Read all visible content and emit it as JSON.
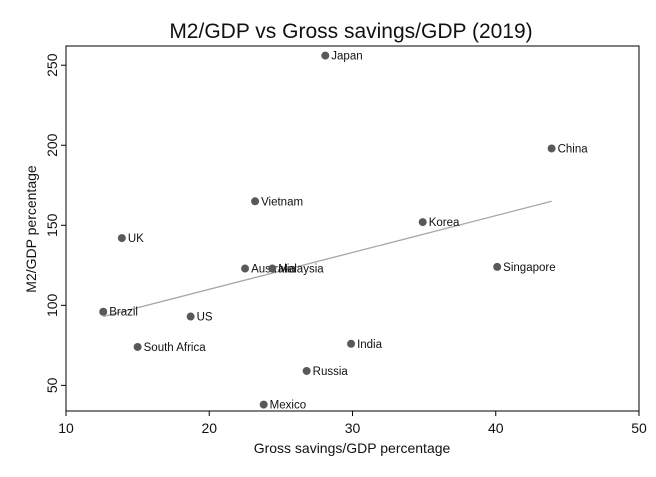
{
  "chart_data": {
    "type": "scatter",
    "title": "M2/GDP vs Gross savings/GDP (2019)",
    "xlabel": "Gross savings/GDP percentage",
    "ylabel": "M2/GDP percentage",
    "xlim": [
      10,
      50
    ],
    "ylim": [
      34,
      262
    ],
    "xticks": [
      10,
      20,
      30,
      40,
      50
    ],
    "yticks": [
      50,
      100,
      150,
      200,
      250
    ],
    "grid": false,
    "legend": "none",
    "marker_color": "#595959",
    "fit_line_color": "#a6a6a6",
    "points": [
      {
        "label": "Japan",
        "x": 28.1,
        "y": 256
      },
      {
        "label": "China",
        "x": 43.9,
        "y": 198
      },
      {
        "label": "Vietnam",
        "x": 23.2,
        "y": 165
      },
      {
        "label": "Korea",
        "x": 34.9,
        "y": 152
      },
      {
        "label": "UK",
        "x": 13.9,
        "y": 142
      },
      {
        "label": "Singapore",
        "x": 40.1,
        "y": 124
      },
      {
        "label": "Australia",
        "x": 22.5,
        "y": 123
      },
      {
        "label": "Malaysia",
        "x": 24.4,
        "y": 123
      },
      {
        "label": "Brazil",
        "x": 12.6,
        "y": 96
      },
      {
        "label": "US",
        "x": 18.7,
        "y": 93
      },
      {
        "label": "South Africa",
        "x": 15.0,
        "y": 74
      },
      {
        "label": "India",
        "x": 29.9,
        "y": 76
      },
      {
        "label": "Russia",
        "x": 26.8,
        "y": 59
      },
      {
        "label": "Mexico",
        "x": 23.8,
        "y": 38
      }
    ],
    "fit_line": {
      "x": [
        12.6,
        43.9
      ],
      "y": [
        93,
        165
      ]
    }
  }
}
